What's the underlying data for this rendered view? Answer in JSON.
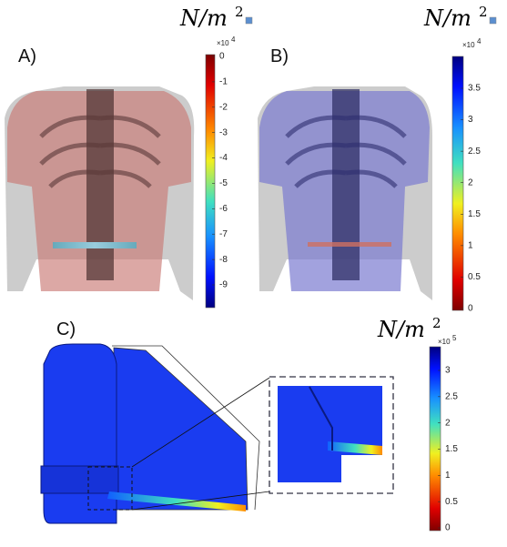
{
  "panels": [
    {
      "label": "A)",
      "unit": "N/m",
      "unit_exponent": "2",
      "multiplier": "×10",
      "multiplier_exponent": "4",
      "ticks": [
        0,
        -1,
        -2,
        -3,
        -4,
        -5,
        -6,
        -7,
        -8,
        -9
      ]
    },
    {
      "label": "B)",
      "unit": "N/m",
      "unit_exponent": "2",
      "multiplier": "×10",
      "multiplier_exponent": "4",
      "ticks": [
        0,
        0.5,
        1,
        1.5,
        2,
        2.5,
        3,
        3.5
      ]
    },
    {
      "label": "C)",
      "unit": "N/m",
      "unit_exponent": "2",
      "multiplier": "×10",
      "multiplier_exponent": "5",
      "ticks": [
        0,
        0.5,
        1,
        1.5,
        2,
        2.5,
        3
      ]
    }
  ]
}
